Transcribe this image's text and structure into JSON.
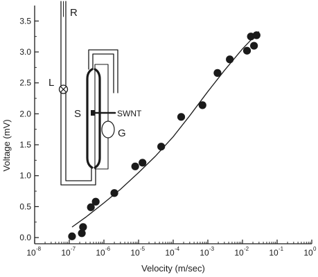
{
  "chart_data": {
    "type": "scatter",
    "xlabel": "Velocity (m/sec)",
    "ylabel": "Voltage (mV)",
    "x_scale": "log",
    "xlim": [
      1e-08,
      1
    ],
    "ylim": [
      -0.1,
      3.75
    ],
    "x_tick_base": "10",
    "x_ticks": [
      {
        "value": 1e-08,
        "exp": "-8"
      },
      {
        "value": 1e-07,
        "exp": "-7"
      },
      {
        "value": 1e-06,
        "exp": "-6"
      },
      {
        "value": 1e-05,
        "exp": "-5"
      },
      {
        "value": 0.0001,
        "exp": "-4"
      },
      {
        "value": 0.001,
        "exp": "-3"
      },
      {
        "value": 0.01,
        "exp": "-2"
      },
      {
        "value": 0.1,
        "exp": "-1"
      },
      {
        "value": 1,
        "exp": "0"
      }
    ],
    "y_ticks": [
      {
        "value": 0.0,
        "label": "0.0"
      },
      {
        "value": 0.5,
        "label": "0.5"
      },
      {
        "value": 1.0,
        "label": "1.0"
      },
      {
        "value": 1.5,
        "label": "1.5"
      },
      {
        "value": 2.0,
        "label": "2.0"
      },
      {
        "value": 2.5,
        "label": "2.5"
      },
      {
        "value": 3.0,
        "label": "3.0"
      },
      {
        "value": 3.5,
        "label": "3.5"
      }
    ],
    "points": [
      {
        "x": 1.2e-07,
        "y": 0.02
      },
      {
        "x": 2.3e-07,
        "y": 0.07
      },
      {
        "x": 2.5e-07,
        "y": 0.17
      },
      {
        "x": 4.2e-07,
        "y": 0.49
      },
      {
        "x": 5.8e-07,
        "y": 0.58
      },
      {
        "x": 2e-06,
        "y": 0.72
      },
      {
        "x": 8e-06,
        "y": 1.15
      },
      {
        "x": 1.3e-05,
        "y": 1.21
      },
      {
        "x": 4.5e-05,
        "y": 1.47
      },
      {
        "x": 0.00017,
        "y": 1.95
      },
      {
        "x": 0.0007,
        "y": 2.14
      },
      {
        "x": 0.0019,
        "y": 2.66
      },
      {
        "x": 0.0043,
        "y": 2.88
      },
      {
        "x": 0.0135,
        "y": 3.02
      },
      {
        "x": 0.0175,
        "y": 3.25
      },
      {
        "x": 0.0215,
        "y": 3.1
      },
      {
        "x": 0.0255,
        "y": 3.27
      }
    ],
    "fit_curve": [
      {
        "x": 1.2e-07,
        "y": 0.17
      },
      {
        "x": 3e-07,
        "y": 0.33
      },
      {
        "x": 1e-06,
        "y": 0.56
      },
      {
        "x": 3e-06,
        "y": 0.78
      },
      {
        "x": 1e-05,
        "y": 1.05
      },
      {
        "x": 3e-05,
        "y": 1.31
      },
      {
        "x": 0.0001,
        "y": 1.63
      },
      {
        "x": 0.0003,
        "y": 1.97
      },
      {
        "x": 0.001,
        "y": 2.36
      },
      {
        "x": 0.003,
        "y": 2.7
      },
      {
        "x": 0.01,
        "y": 3.05
      },
      {
        "x": 0.03,
        "y": 3.33
      }
    ],
    "grid": false,
    "legend": "none",
    "marker_color": "#1a1a1a",
    "line_color": "#1a1a1a"
  },
  "inset": {
    "label_R": "R",
    "label_L": "L",
    "label_S": "S",
    "label_G": "G",
    "label_SWNT": "SWNT"
  }
}
